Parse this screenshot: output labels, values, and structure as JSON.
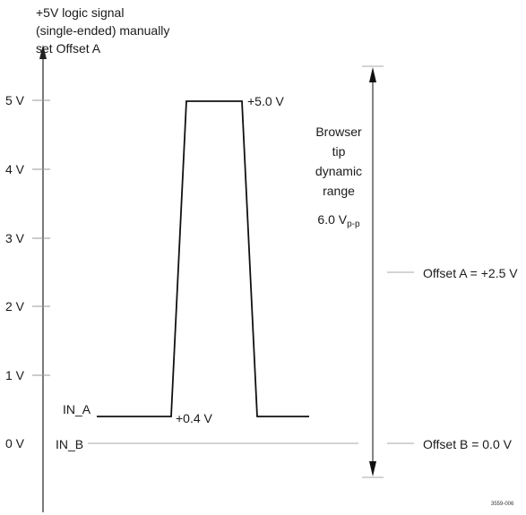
{
  "title_lines": [
    "+5V logic signal",
    "(single-ended) manually",
    "set Offset A"
  ],
  "y_ticks": [
    {
      "label": "5 V",
      "value": 5
    },
    {
      "label": "4 V",
      "value": 4
    },
    {
      "label": "3 V",
      "value": 3
    },
    {
      "label": "2 V",
      "value": 2
    },
    {
      "label": "1 V",
      "value": 1
    },
    {
      "label": "0 V",
      "value": 0
    }
  ],
  "inputs": {
    "in_a": "IN_A",
    "in_b": "IN_B"
  },
  "pulse": {
    "low_label": "+0.4 V",
    "high_label": "+5.0 V",
    "low_v": 0.4,
    "high_v": 5.0
  },
  "range": {
    "lines": [
      "Browser",
      "tip",
      "dynamic",
      "range"
    ],
    "value_main": "6.0 V",
    "value_sub": "p-p"
  },
  "offsets": {
    "a": "Offset A = +2.5 V",
    "b": "Offset B = 0.0 V",
    "a_v": 2.5,
    "b_v": 0.0
  },
  "figure_id": "3559-006"
}
